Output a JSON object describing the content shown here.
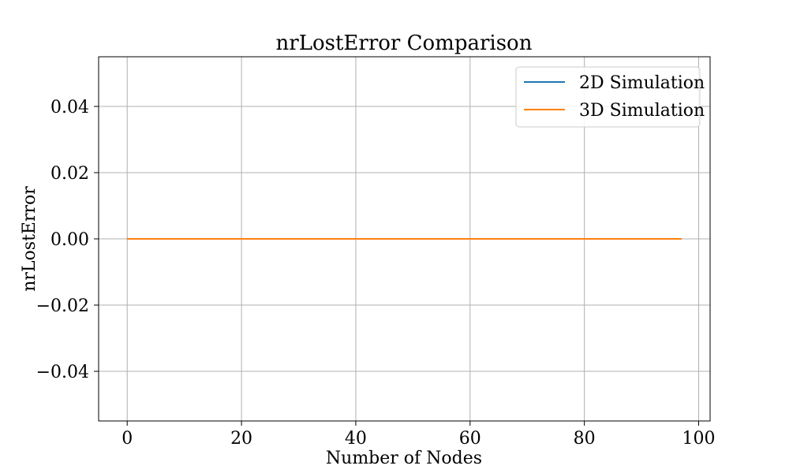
{
  "chart_data": {
    "type": "line",
    "title": "nrLostError Comparison",
    "xlabel": "Number of Nodes",
    "ylabel": "nrLostError",
    "xlim": [
      -5,
      102
    ],
    "ylim": [
      -0.055,
      0.055
    ],
    "x_ticks": [
      0,
      20,
      40,
      60,
      80,
      100
    ],
    "x_tick_labels": [
      "0",
      "20",
      "40",
      "60",
      "80",
      "100"
    ],
    "y_ticks": [
      0.04,
      0.02,
      0.0,
      -0.02,
      -0.04
    ],
    "y_tick_labels": [
      "0.04",
      "0.02",
      "0.00",
      "−0.02",
      "−0.04"
    ],
    "grid": true,
    "legend_position": "top-right",
    "series": [
      {
        "name": "2D Simulation",
        "color": "#1f77b4",
        "x": [
          0,
          97
        ],
        "y": [
          0,
          0
        ]
      },
      {
        "name": "3D Simulation",
        "color": "#ff7f0e",
        "x": [
          0,
          97
        ],
        "y": [
          0,
          0
        ]
      }
    ]
  }
}
